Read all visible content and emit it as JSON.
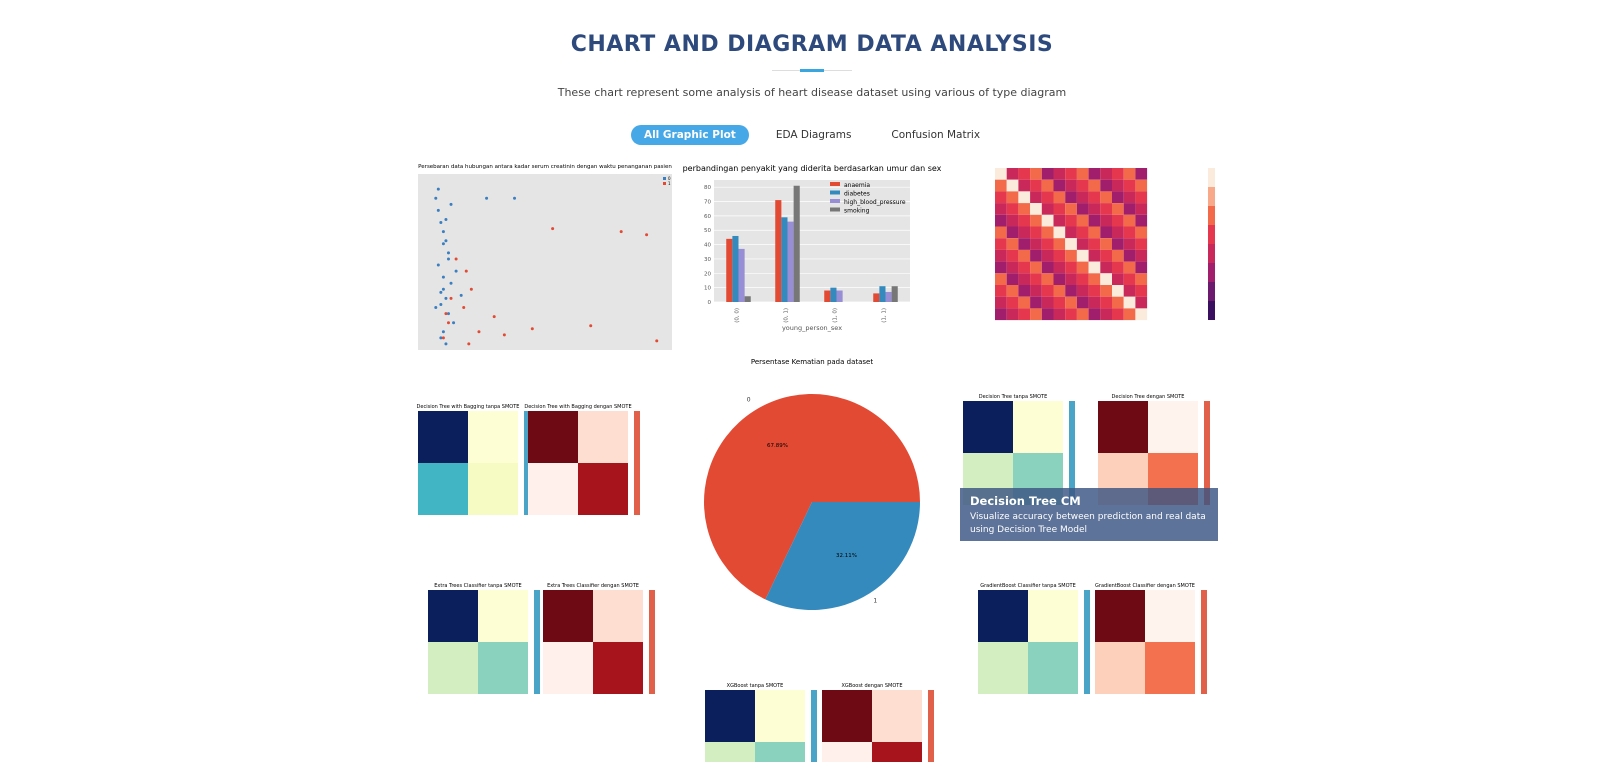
{
  "header": {
    "title": "CHART AND DIAGRAM DATA ANALYSIS",
    "subtitle": "These chart represent some analysis of heart disease dataset using various of type diagram"
  },
  "filters": [
    "All Graphic Plot",
    "EDA Diagrams",
    "Confusion Matrix"
  ],
  "scatter": {
    "type": "scatter",
    "title": "Persebaran data hubungan antara kadar serum creatinin dengan waktu penanganan pasien",
    "xlim": [
      0,
      10
    ],
    "ylim": [
      0,
      290
    ],
    "series": [
      {
        "name": "0",
        "color": "#3a7fc1",
        "x": [
          0.7,
          0.8,
          0.9,
          1.0,
          1.1,
          1.2,
          0.8,
          1.0,
          1.3,
          0.9,
          1.1,
          0.7,
          1.2,
          1.4,
          1.0,
          0.9,
          1.1,
          1.3,
          0.8,
          1.0,
          1.2,
          1.5,
          2.7,
          3.8,
          1.7,
          1.0,
          0.9,
          1.1
        ],
        "y": [
          250,
          230,
          210,
          195,
          180,
          160,
          140,
          120,
          110,
          95,
          85,
          70,
          60,
          45,
          30,
          20,
          215,
          240,
          265,
          175,
          150,
          130,
          250,
          250,
          90,
          100,
          75,
          10
        ]
      },
      {
        "name": "1",
        "color": "#e24a33",
        "x": [
          1.0,
          1.2,
          1.8,
          2.1,
          2.4,
          3.0,
          5.3,
          6.8,
          9.4,
          1.5,
          2.0,
          1.3,
          3.4,
          8.0,
          9.0,
          1.1,
          1.9,
          4.5
        ],
        "y": [
          20,
          45,
          70,
          100,
          30,
          55,
          200,
          40,
          15,
          150,
          10,
          85,
          25,
          195,
          190,
          60,
          130,
          35
        ]
      }
    ]
  },
  "bar": {
    "type": "bar",
    "title": "perbandingan penyakit yang diderita berdasarkan umur dan sex",
    "xlabel": "young_person_sex",
    "categories": [
      "(0, 0)",
      "(0, 1)",
      "(1, 0)",
      "(1, 1)"
    ],
    "ylim": [
      0,
      85
    ],
    "yticks": [
      0,
      10,
      20,
      30,
      40,
      50,
      60,
      70,
      80
    ],
    "series": [
      {
        "name": "anaemia",
        "color": "#e24a33",
        "values": [
          44,
          71,
          8,
          6
        ]
      },
      {
        "name": "diabetes",
        "color": "#348abd",
        "values": [
          46,
          59,
          10,
          11
        ]
      },
      {
        "name": "high_blood_pressure",
        "color": "#988ed5",
        "values": [
          37,
          56,
          8,
          7
        ]
      },
      {
        "name": "smoking",
        "color": "#777777",
        "values": [
          4,
          81,
          0,
          11
        ]
      }
    ]
  },
  "pie": {
    "type": "pie",
    "title": "Persentase Kematian pada dataset",
    "categories": [
      "0",
      "1"
    ],
    "values": [
      67.89,
      32.11
    ],
    "value_labels": [
      "67.89%",
      "32.11%"
    ],
    "colors": [
      "#e24a33",
      "#348abd"
    ]
  },
  "matrices": [
    {
      "title": "Decision Tree with Bagging tanpa SMOTE"
    },
    {
      "title": "Decision Tree with Bagging dengan SMOTE"
    },
    {
      "title": "Decision Tree tanpa SMOTE"
    },
    {
      "title": "Decision Tree dengan SMOTE"
    },
    {
      "title": "Extra Trees Classifier tanpa SMOTE"
    },
    {
      "title": "Extra Trees Classifier dengan SMOTE"
    },
    {
      "title": "GradientBoost Classifier tanpa SMOTE"
    },
    {
      "title": "GradientBoost Classifier dengan SMOTE"
    },
    {
      "title": "XGBoost tanpa SMOTE"
    },
    {
      "title": "XGBoost dengan SMOTE"
    }
  ],
  "overlay": {
    "title": "Decision Tree CM",
    "text": "Visualize accuracy between prediction and real data using Decision Tree Model"
  }
}
